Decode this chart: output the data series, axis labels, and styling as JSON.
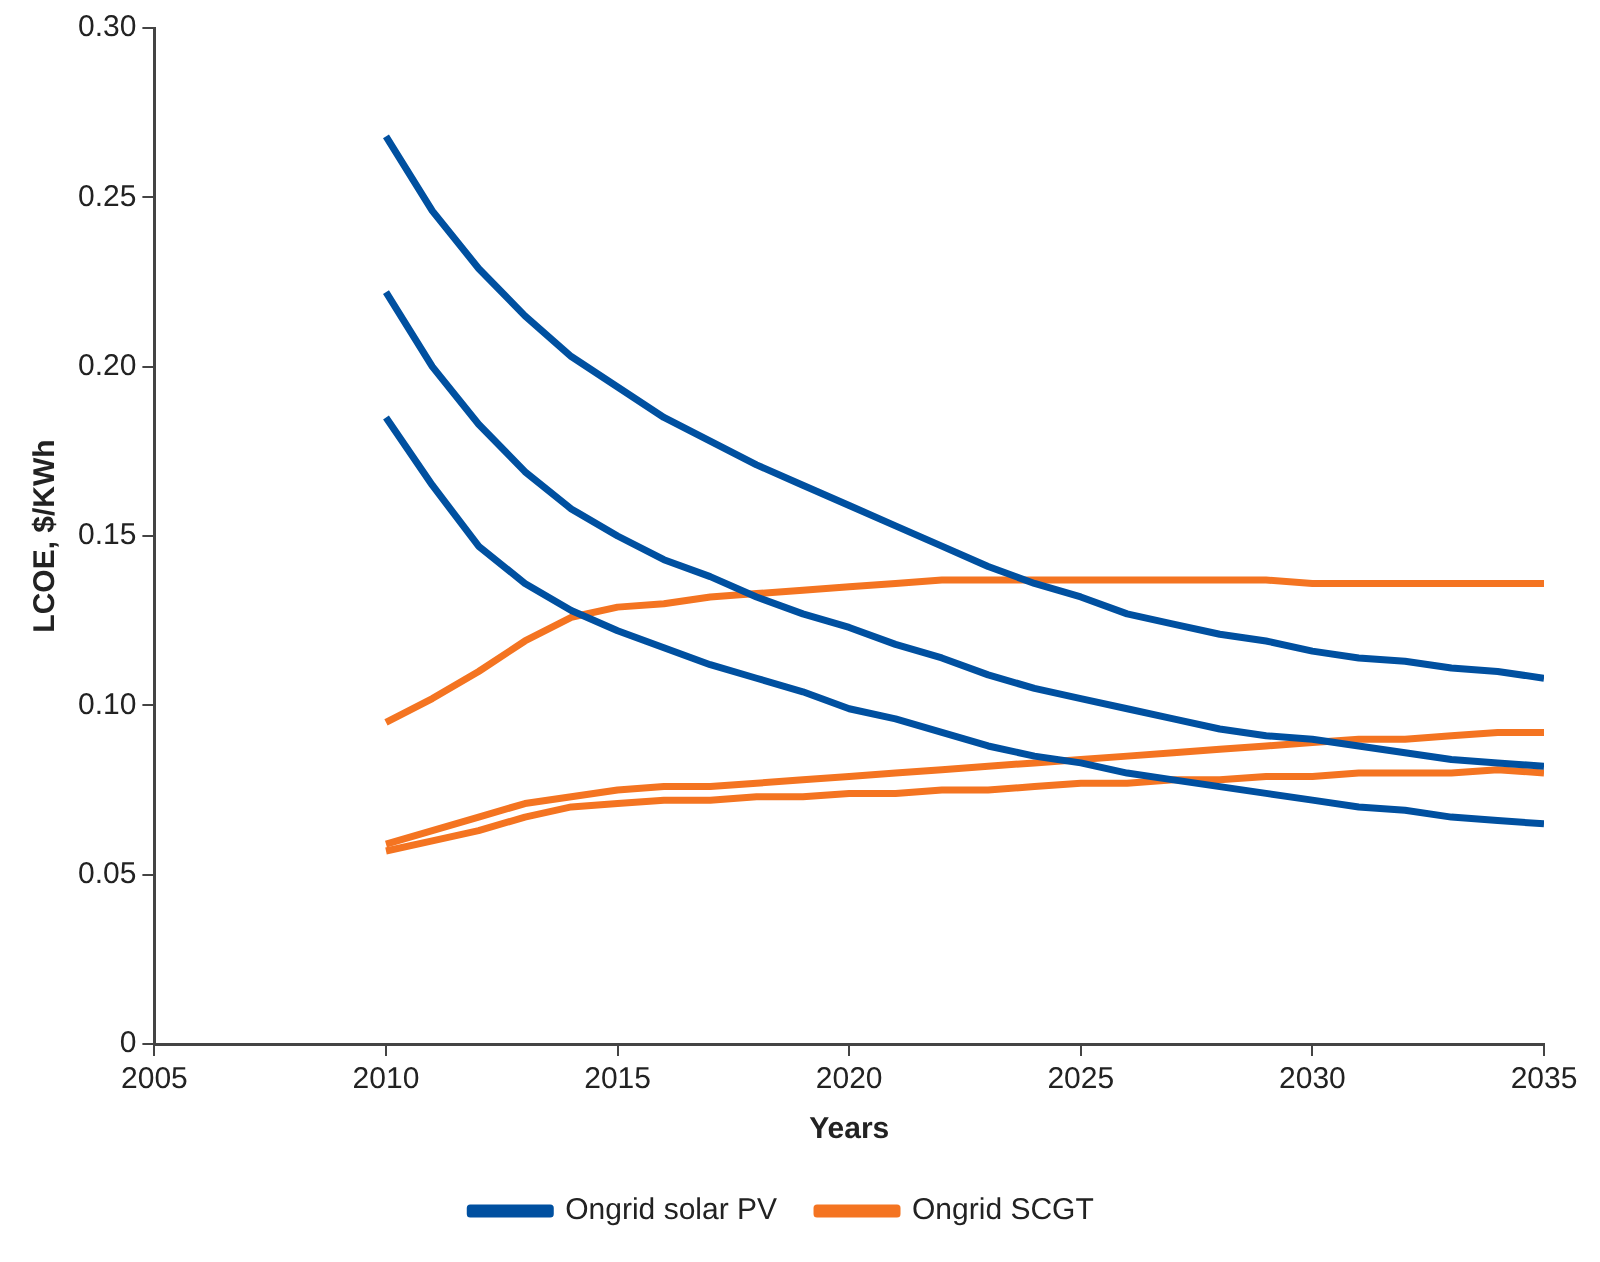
{
  "chart_data": {
    "type": "line",
    "xlabel": "Years",
    "ylabel": "LCOE, $/KWh",
    "x": [
      2010,
      2011,
      2012,
      2013,
      2014,
      2015,
      2016,
      2017,
      2018,
      2019,
      2020,
      2021,
      2022,
      2023,
      2024,
      2025,
      2026,
      2027,
      2028,
      2029,
      2030,
      2031,
      2032,
      2033,
      2034,
      2035
    ],
    "series": [
      {
        "name": "Ongrid solar PV",
        "color": "#0050a0",
        "values": [
          0.268,
          0.246,
          0.229,
          0.215,
          0.203,
          0.194,
          0.185,
          0.178,
          0.171,
          0.165,
          0.159,
          0.153,
          0.147,
          0.141,
          0.136,
          0.132,
          0.127,
          0.124,
          0.121,
          0.119,
          0.116,
          0.114,
          0.113,
          0.111,
          0.11,
          0.108
        ]
      },
      {
        "color": "#0050a0",
        "values": [
          0.222,
          0.2,
          0.183,
          0.169,
          0.158,
          0.15,
          0.143,
          0.138,
          0.132,
          0.127,
          0.123,
          0.118,
          0.114,
          0.109,
          0.105,
          0.102,
          0.099,
          0.096,
          0.093,
          0.091,
          0.09,
          0.088,
          0.086,
          0.084,
          0.083,
          0.082
        ]
      },
      {
        "color": "#0050a0",
        "values": [
          0.185,
          0.165,
          0.147,
          0.136,
          0.128,
          0.122,
          0.117,
          0.112,
          0.108,
          0.104,
          0.099,
          0.096,
          0.092,
          0.088,
          0.085,
          0.083,
          0.08,
          0.078,
          0.076,
          0.074,
          0.072,
          0.07,
          0.069,
          0.067,
          0.066,
          0.065
        ]
      },
      {
        "name": "Ongrid SCGT",
        "color": "#f47421",
        "values": [
          0.095,
          0.102,
          0.11,
          0.119,
          0.126,
          0.129,
          0.13,
          0.132,
          0.133,
          0.134,
          0.135,
          0.136,
          0.137,
          0.137,
          0.137,
          0.137,
          0.137,
          0.137,
          0.137,
          0.137,
          0.136,
          0.136,
          0.136,
          0.136,
          0.136,
          0.136
        ]
      },
      {
        "color": "#f47421",
        "values": [
          0.059,
          0.063,
          0.067,
          0.071,
          0.073,
          0.075,
          0.076,
          0.076,
          0.077,
          0.078,
          0.079,
          0.08,
          0.081,
          0.082,
          0.083,
          0.084,
          0.085,
          0.086,
          0.087,
          0.088,
          0.089,
          0.09,
          0.09,
          0.091,
          0.092,
          0.092
        ]
      },
      {
        "color": "#f47421",
        "values": [
          0.057,
          0.06,
          0.063,
          0.067,
          0.07,
          0.071,
          0.072,
          0.072,
          0.073,
          0.073,
          0.074,
          0.074,
          0.075,
          0.075,
          0.076,
          0.077,
          0.077,
          0.078,
          0.078,
          0.079,
          0.079,
          0.08,
          0.08,
          0.08,
          0.081,
          0.08
        ]
      }
    ],
    "xlim": [
      2005,
      2035
    ],
    "xticks": [
      2005,
      2010,
      2015,
      2020,
      2025,
      2030,
      2035
    ],
    "ylim": [
      0,
      0.3
    ],
    "yticks": [
      0,
      {
        "value": 0.05,
        "label": "0.05"
      },
      {
        "value": 0.1,
        "label": "0.10"
      },
      {
        "value": 0.15,
        "label": "0.15"
      },
      {
        "value": 0.2,
        "label": "0.20"
      },
      {
        "value": 0.25,
        "label": "0.25"
      },
      {
        "value": 0.3,
        "label": "0.30"
      }
    ],
    "grid": false,
    "legend": "bottom",
    "marker": "none",
    "line_style": "solid"
  }
}
